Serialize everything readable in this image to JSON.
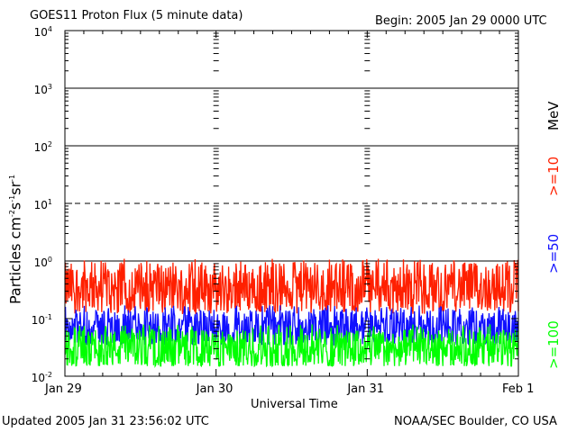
{
  "header": {
    "title": "GOES11 Proton Flux (5 minute data)",
    "begin": "Begin: 2005 Jan 29 0000 UTC"
  },
  "footer": {
    "updated": "Updated 2005 Jan 31 23:56:02 UTC",
    "credit": "NOAA/SEC Boulder, CO USA"
  },
  "chart_data": {
    "type": "line",
    "title": "GOES11 Proton Flux (5 minute data)",
    "xlabel": "Universal Time",
    "ylabel": "Particles cm-2s-1sr-1",
    "y_scale": "log",
    "ylim": [
      0.01,
      10000
    ],
    "xlim": [
      0,
      72
    ],
    "x_units": "hours since 2005 Jan 29 0000 UTC",
    "x_ticks": [
      {
        "hours": 0,
        "label": "Jan 29"
      },
      {
        "hours": 24,
        "label": "Jan 30"
      },
      {
        "hours": 48,
        "label": "Jan 31"
      },
      {
        "hours": 72,
        "label": "Feb 1"
      }
    ],
    "y_ticks": [
      {
        "value": 0.01,
        "base": "10",
        "exp": "-2"
      },
      {
        "value": 0.1,
        "base": "10",
        "exp": "-1"
      },
      {
        "value": 1,
        "base": "10",
        "exp": "0"
      },
      {
        "value": 10,
        "base": "10",
        "exp": "1"
      },
      {
        "value": 100,
        "base": "10",
        "exp": "2"
      },
      {
        "value": 1000,
        "base": "10",
        "exp": "3"
      },
      {
        "value": 10000,
        "base": "10",
        "exp": "4"
      }
    ],
    "threshold_lines": [
      {
        "value": 1,
        "style": "solid"
      },
      {
        "value": 10,
        "style": "dashed"
      },
      {
        "value": 100,
        "style": "solid"
      },
      {
        "value": 1000,
        "style": "solid"
      }
    ],
    "legend_unit": "MeV",
    "series": [
      {
        "name": "P10",
        "label": ">=10",
        "color": "#ff2000",
        "typical": 0.35,
        "min": 0.12,
        "max": 1.1
      },
      {
        "name": "P50",
        "label": ">=50",
        "color": "#1010ff",
        "typical": 0.07,
        "min": 0.035,
        "max": 0.17
      },
      {
        "name": "P100",
        "label": ">=100",
        "color": "#00ff00",
        "typical": 0.03,
        "min": 0.015,
        "max": 0.08
      }
    ]
  }
}
